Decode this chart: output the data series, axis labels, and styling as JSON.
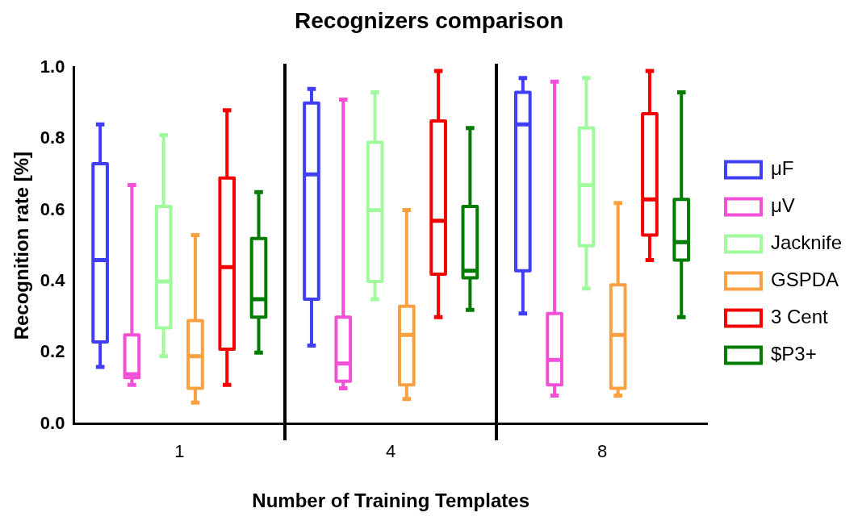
{
  "chart_data": {
    "type": "box",
    "title": "Recognizers comparison",
    "xlabel": "Number of Training Templates",
    "ylabel": "Recognition rate [%]",
    "categories": [
      "1",
      "4",
      "8"
    ],
    "ylim": [
      0,
      1
    ],
    "yticks": [
      {
        "value": 0,
        "label": "0.0"
      },
      0.2,
      0.4,
      0.6,
      0.8,
      {
        "value": 1,
        "label": "1.0"
      }
    ],
    "grid": false,
    "legend": "right",
    "series": [
      {
        "name": "μF",
        "color": "#3f3ff5",
        "boxes": [
          {
            "low": 0.16,
            "q1": 0.23,
            "median": 0.46,
            "q3": 0.73,
            "high": 0.84
          },
          {
            "low": 0.22,
            "q1": 0.35,
            "median": 0.7,
            "q3": 0.9,
            "high": 0.94
          },
          {
            "low": 0.31,
            "q1": 0.43,
            "median": 0.84,
            "q3": 0.93,
            "high": 0.97
          }
        ]
      },
      {
        "name": "μV",
        "color": "#f250d6",
        "boxes": [
          {
            "low": 0.11,
            "q1": 0.13,
            "median": 0.14,
            "q3": 0.25,
            "high": 0.67
          },
          {
            "low": 0.1,
            "q1": 0.12,
            "median": 0.17,
            "q3": 0.3,
            "high": 0.91
          },
          {
            "low": 0.08,
            "q1": 0.11,
            "median": 0.18,
            "q3": 0.31,
            "high": 0.96
          }
        ]
      },
      {
        "name": "Jacknife",
        "color": "#9ffb9c",
        "boxes": [
          {
            "low": 0.19,
            "q1": 0.27,
            "median": 0.4,
            "q3": 0.61,
            "high": 0.81
          },
          {
            "low": 0.35,
            "q1": 0.4,
            "median": 0.6,
            "q3": 0.79,
            "high": 0.93
          },
          {
            "low": 0.38,
            "q1": 0.5,
            "median": 0.67,
            "q3": 0.83,
            "high": 0.97
          }
        ]
      },
      {
        "name": "GSPDA",
        "color": "#f9a040",
        "boxes": [
          {
            "low": 0.06,
            "q1": 0.1,
            "median": 0.19,
            "q3": 0.29,
            "high": 0.53
          },
          {
            "low": 0.07,
            "q1": 0.11,
            "median": 0.25,
            "q3": 0.33,
            "high": 0.6
          },
          {
            "low": 0.08,
            "q1": 0.1,
            "median": 0.25,
            "q3": 0.39,
            "high": 0.62
          }
        ]
      },
      {
        "name": "3 Cent",
        "color": "#f50000",
        "boxes": [
          {
            "low": 0.11,
            "q1": 0.21,
            "median": 0.44,
            "q3": 0.69,
            "high": 0.88
          },
          {
            "low": 0.3,
            "q1": 0.42,
            "median": 0.57,
            "q3": 0.85,
            "high": 0.99
          },
          {
            "low": 0.46,
            "q1": 0.53,
            "median": 0.63,
            "q3": 0.87,
            "high": 0.99
          }
        ]
      },
      {
        "name": "$P3+",
        "color": "#007d00",
        "boxes": [
          {
            "low": 0.2,
            "q1": 0.3,
            "median": 0.35,
            "q3": 0.52,
            "high": 0.65
          },
          {
            "low": 0.32,
            "q1": 0.41,
            "median": 0.43,
            "q3": 0.61,
            "high": 0.83
          },
          {
            "low": 0.3,
            "q1": 0.46,
            "median": 0.51,
            "q3": 0.63,
            "high": 0.93
          }
        ]
      }
    ]
  }
}
